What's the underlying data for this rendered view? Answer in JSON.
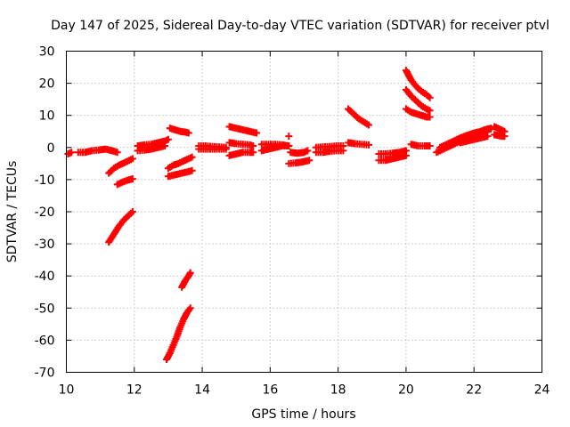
{
  "chart_data": {
    "type": "scatter",
    "title": "Day 147 of 2025, Sidereal Day-to-day VTEC variation (SDTVAR) for receiver ptvl",
    "xlabel": "GPS time / hours",
    "ylabel": "SDTVAR / TECUs",
    "xlim": [
      10,
      24
    ],
    "ylim": [
      -70,
      30
    ],
    "xticks": [
      "10",
      "12",
      "14",
      "16",
      "18",
      "20",
      "22",
      "24"
    ],
    "yticks": [
      "30",
      "20",
      "10",
      "0",
      "-10",
      "-20",
      "-30",
      "-40",
      "-50",
      "-60",
      "-70"
    ],
    "grid": true,
    "marker": "plus",
    "color": "#ff0000",
    "series": [
      {
        "name": "s01",
        "x": [
          10.05,
          10.15
        ],
        "y": [
          -2.0,
          -1.5
        ]
      },
      {
        "name": "s02",
        "x": [
          10.35,
          10.55,
          10.75,
          10.95,
          11.15,
          11.35,
          11.5
        ],
        "y": [
          -1.5,
          -1.5,
          -1.0,
          -0.8,
          -0.5,
          -1.0,
          -1.5
        ]
      },
      {
        "name": "s03",
        "x": [
          11.25,
          11.4,
          11.55,
          11.7,
          11.85,
          11.95
        ],
        "y": [
          -8.0,
          -6.5,
          -5.5,
          -4.8,
          -4.0,
          -3.5
        ]
      },
      {
        "name": "s04",
        "x": [
          11.5,
          11.65,
          11.8,
          11.95
        ],
        "y": [
          -11.5,
          -10.8,
          -10.2,
          -9.8
        ]
      },
      {
        "name": "s05",
        "x": [
          11.25,
          11.4,
          11.55,
          11.7,
          11.85,
          11.95
        ],
        "y": [
          -29.5,
          -27.0,
          -24.5,
          -22.5,
          -21.0,
          -20.0
        ]
      },
      {
        "name": "s06",
        "x": [
          12.1,
          12.3,
          12.5,
          12.7,
          12.9,
          13.0
        ],
        "y": [
          0.5,
          0.8,
          1.0,
          1.5,
          2.0,
          2.5
        ]
      },
      {
        "name": "s07",
        "x": [
          12.1,
          12.3,
          12.5,
          12.7,
          12.9
        ],
        "y": [
          -1.0,
          -0.8,
          -0.5,
          0.0,
          0.5
        ]
      },
      {
        "name": "s08",
        "x": [
          13.05,
          13.2,
          13.35,
          13.5,
          13.6
        ],
        "y": [
          6.0,
          5.5,
          5.0,
          4.8,
          4.5
        ]
      },
      {
        "name": "s09",
        "x": [
          13.0,
          13.15,
          13.3,
          13.45,
          13.6,
          13.7
        ],
        "y": [
          -6.5,
          -5.5,
          -5.0,
          -4.2,
          -3.5,
          -3.0
        ]
      },
      {
        "name": "s10",
        "x": [
          13.0,
          13.2,
          13.4,
          13.6,
          13.7
        ],
        "y": [
          -9.0,
          -8.5,
          -8.0,
          -7.5,
          -7.2
        ]
      },
      {
        "name": "s11",
        "x": [
          13.4,
          13.5,
          13.6,
          13.65
        ],
        "y": [
          -43.5,
          -41.5,
          -40.0,
          -39.0
        ]
      },
      {
        "name": "s12",
        "x": [
          12.95,
          13.05,
          13.15,
          13.25,
          13.35,
          13.45,
          13.55,
          13.65
        ],
        "y": [
          -66.0,
          -64.0,
          -61.5,
          -59.0,
          -56.0,
          -53.5,
          -51.5,
          -50.0
        ]
      },
      {
        "name": "s13",
        "x": [
          13.9,
          14.1,
          14.3,
          14.5,
          14.7
        ],
        "y": [
          0.5,
          0.5,
          0.3,
          0.2,
          0.0
        ]
      },
      {
        "name": "s14",
        "x": [
          13.9,
          14.1,
          14.3,
          14.5,
          14.7
        ],
        "y": [
          -0.5,
          -0.5,
          -0.5,
          -0.5,
          -0.5
        ]
      },
      {
        "name": "s15",
        "x": [
          14.8,
          15.0,
          15.2,
          15.4,
          15.6
        ],
        "y": [
          6.5,
          6.0,
          5.5,
          5.0,
          4.5
        ]
      },
      {
        "name": "s16",
        "x": [
          14.8,
          15.0,
          15.2,
          15.4,
          15.5
        ],
        "y": [
          1.5,
          1.2,
          1.0,
          0.8,
          0.5
        ]
      },
      {
        "name": "s17",
        "x": [
          14.8,
          15.0,
          15.2,
          15.4,
          15.5
        ],
        "y": [
          -2.5,
          -2.0,
          -1.5,
          -1.5,
          -1.5
        ]
      },
      {
        "name": "s18",
        "x": [
          15.75,
          15.95,
          16.15,
          16.35,
          16.55
        ],
        "y": [
          -1.0,
          -0.5,
          0.0,
          0.5,
          0.5
        ]
      },
      {
        "name": "s19",
        "x": [
          15.75,
          15.95,
          16.15,
          16.35,
          16.55
        ],
        "y": [
          1.0,
          1.0,
          1.0,
          0.8,
          0.5
        ]
      },
      {
        "name": "s20",
        "x": [
          16.55
        ],
        "y": [
          3.5
        ]
      },
      {
        "name": "s21",
        "x": [
          16.6,
          16.8,
          17.0,
          17.1
        ],
        "y": [
          -1.5,
          -1.8,
          -1.5,
          -1.0
        ]
      },
      {
        "name": "s22",
        "x": [
          16.55,
          16.75,
          16.95,
          17.15
        ],
        "y": [
          -5.0,
          -4.8,
          -4.5,
          -4.0
        ]
      },
      {
        "name": "s23",
        "x": [
          17.35,
          17.55,
          17.75,
          17.95,
          18.15
        ],
        "y": [
          -1.5,
          -1.5,
          -1.2,
          -1.0,
          -1.0
        ]
      },
      {
        "name": "s24",
        "x": [
          17.35,
          17.55,
          17.75,
          17.95,
          18.15
        ],
        "y": [
          0.0,
          0.2,
          0.3,
          0.5,
          0.5
        ]
      },
      {
        "name": "s25",
        "x": [
          18.3,
          18.45,
          18.6,
          18.75,
          18.9
        ],
        "y": [
          12.0,
          10.5,
          9.0,
          8.0,
          7.0
        ]
      },
      {
        "name": "s26",
        "x": [
          18.3,
          18.5,
          18.7,
          18.9
        ],
        "y": [
          1.5,
          1.2,
          1.0,
          0.8
        ]
      },
      {
        "name": "s27",
        "x": [
          19.2,
          19.4,
          19.6,
          19.8,
          20.0
        ],
        "y": [
          -4.0,
          -4.0,
          -3.5,
          -3.0,
          -2.5
        ]
      },
      {
        "name": "s28",
        "x": [
          19.2,
          19.4,
          19.6,
          19.8,
          20.0
        ],
        "y": [
          -2.0,
          -2.0,
          -1.8,
          -1.5,
          -1.0
        ]
      },
      {
        "name": "s29",
        "x": [
          20.0,
          20.15,
          20.3,
          20.45,
          20.6,
          20.7
        ],
        "y": [
          24.0,
          21.0,
          19.0,
          17.5,
          16.5,
          15.5
        ]
      },
      {
        "name": "s30",
        "x": [
          20.0,
          20.15,
          20.3,
          20.45,
          20.6,
          20.7
        ],
        "y": [
          18.0,
          16.0,
          14.5,
          13.0,
          12.0,
          11.5
        ]
      },
      {
        "name": "s31",
        "x": [
          20.0,
          20.15,
          20.3,
          20.45,
          20.6,
          20.7
        ],
        "y": [
          12.0,
          11.0,
          10.5,
          10.0,
          9.5,
          9.5
        ]
      },
      {
        "name": "s32",
        "x": [
          20.15,
          20.35,
          20.55,
          20.7
        ],
        "y": [
          1.0,
          0.5,
          0.5,
          0.5
        ]
      },
      {
        "name": "s33",
        "x": [
          20.9,
          21.1,
          21.3,
          21.5,
          21.7,
          21.9,
          22.1,
          22.3,
          22.5
        ],
        "y": [
          -1.5,
          -0.5,
          0.5,
          1.5,
          2.5,
          3.5,
          4.5,
          5.5,
          6.0
        ]
      },
      {
        "name": "s34",
        "x": [
          21.0,
          21.2,
          21.4,
          21.6,
          21.8,
          22.0,
          22.2,
          22.4,
          22.5
        ],
        "y": [
          0.0,
          1.0,
          2.0,
          3.0,
          3.8,
          4.5,
          5.0,
          5.5,
          5.8
        ]
      },
      {
        "name": "s35",
        "x": [
          21.6,
          21.8,
          22.0,
          22.2,
          22.4
        ],
        "y": [
          1.5,
          2.0,
          2.5,
          3.0,
          3.5
        ]
      },
      {
        "name": "s36",
        "x": [
          22.6,
          22.7,
          22.8,
          22.9
        ],
        "y": [
          6.5,
          6.0,
          5.5,
          5.0
        ]
      },
      {
        "name": "s37",
        "x": [
          22.6,
          22.7,
          22.8,
          22.9
        ],
        "y": [
          4.0,
          3.8,
          3.5,
          3.5
        ]
      }
    ]
  }
}
